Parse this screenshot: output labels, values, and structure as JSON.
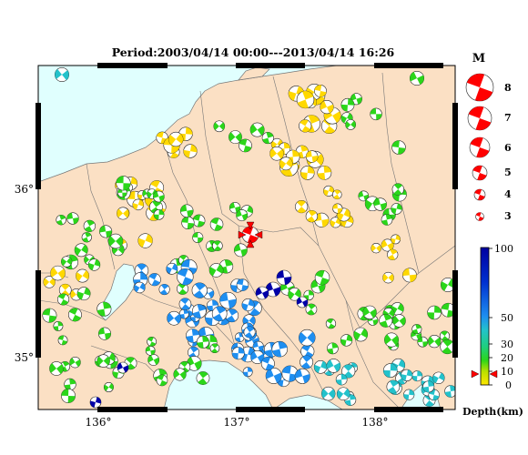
{
  "title": "Period:2003/04/14 00:00---2013/04/14 16:26",
  "axes": {
    "lon_ticks": [
      "136°",
      "137°",
      "138°"
    ],
    "lat_ticks": [
      "36°",
      "35°"
    ]
  },
  "magnitude_legend": {
    "title": "M",
    "items": [
      "8",
      "7",
      "6",
      "5",
      "4",
      "3"
    ]
  },
  "depth_legend": {
    "title": "Depth(km)",
    "ticks": [
      "100",
      "50",
      "30",
      "20",
      "10",
      "0"
    ]
  },
  "colors": {
    "land": "#fbe0c4",
    "sea": "#e0fffe",
    "shallow": "#ffd800",
    "mid": "#2bd61a",
    "mid_deep": "#23c2cb",
    "deep": "#1e8ef0",
    "very_deep": "#0000a8",
    "main_event": "#ff0000"
  }
}
